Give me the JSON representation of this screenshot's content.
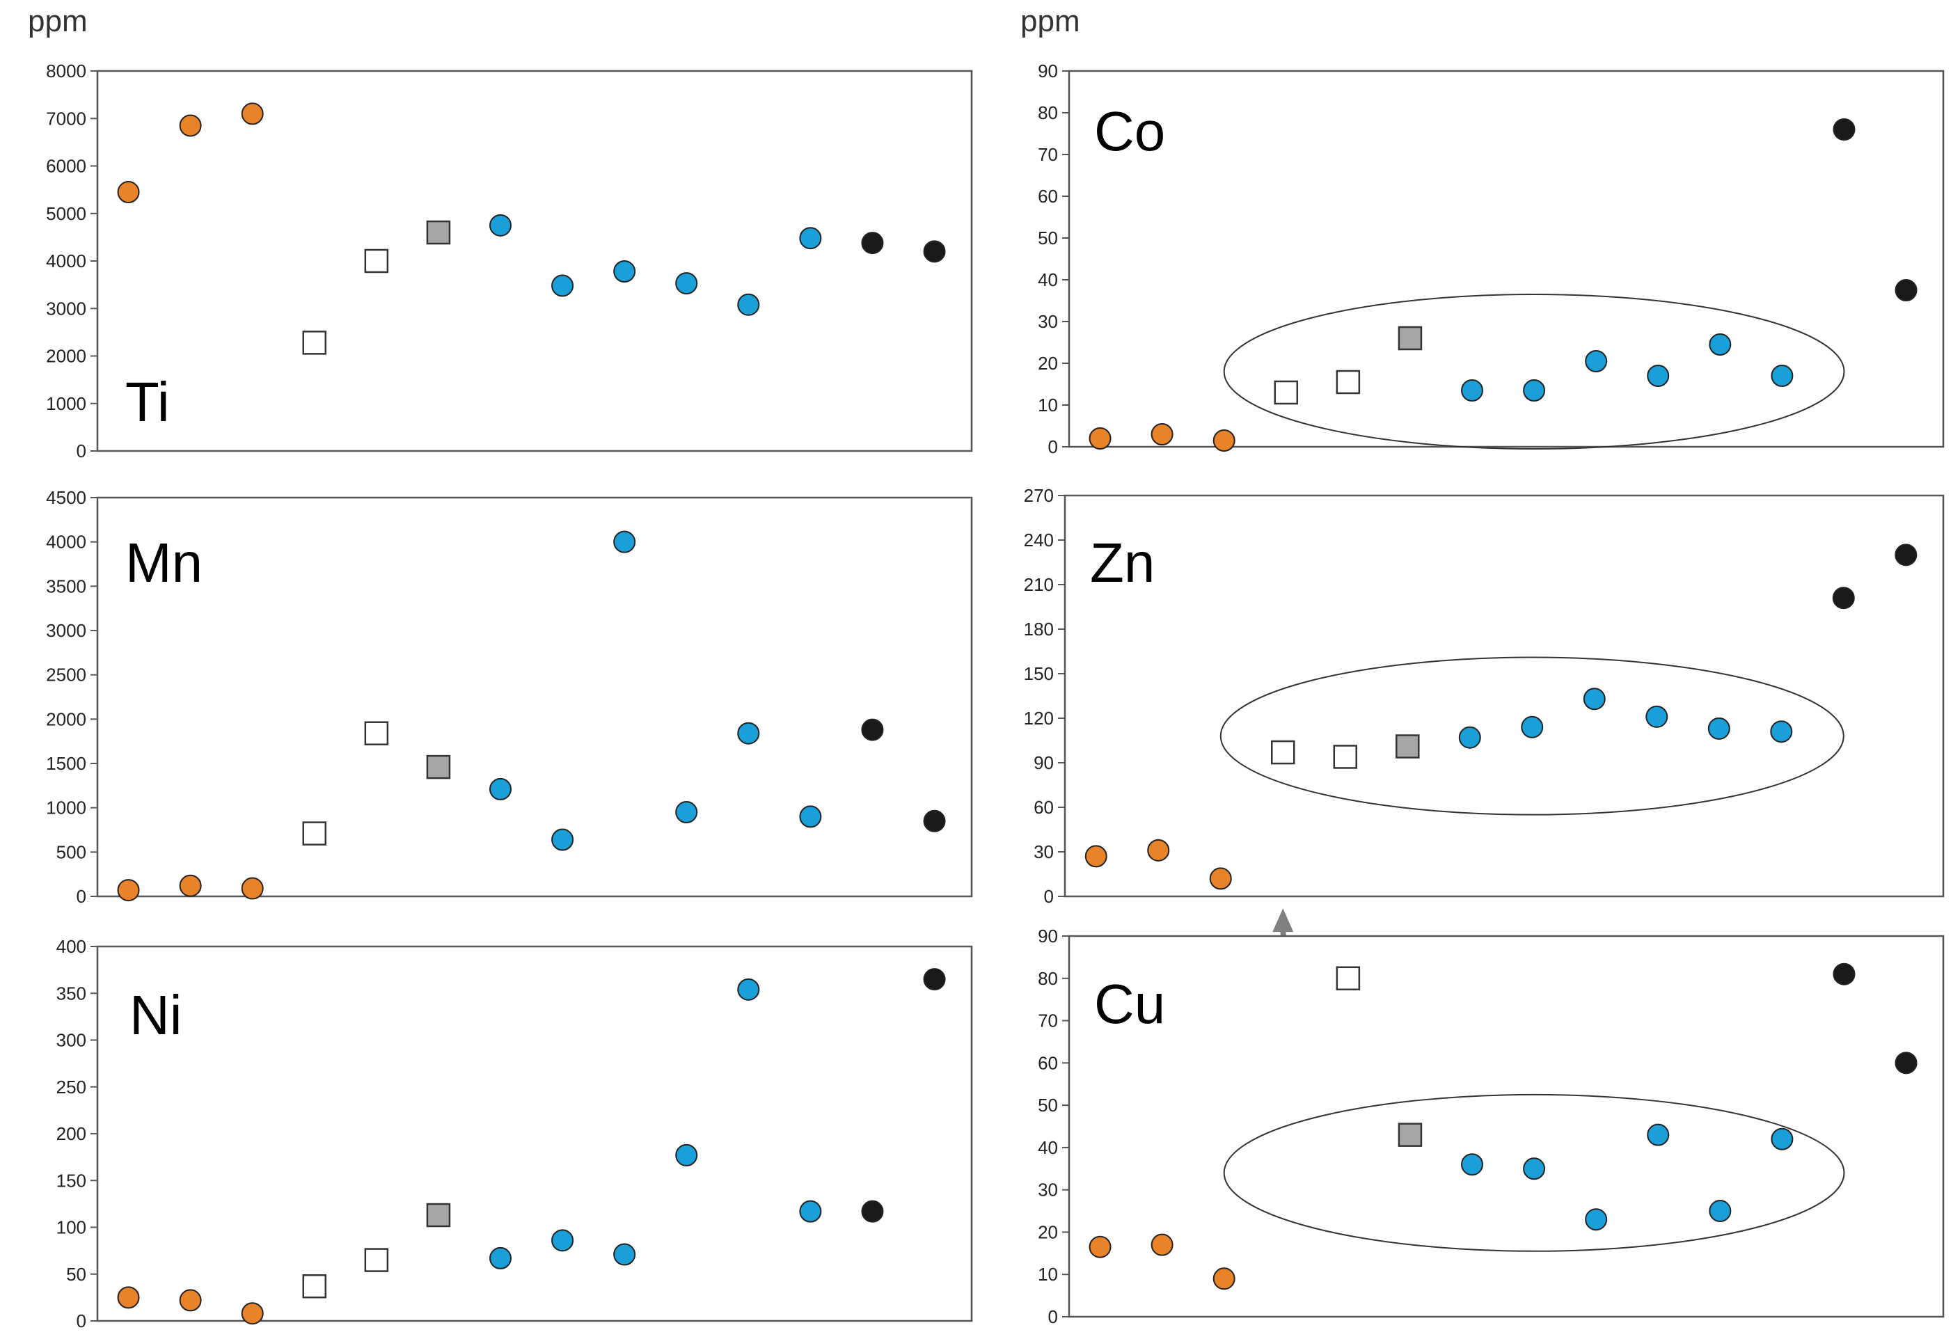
{
  "colors": {
    "orange": "#e8832a",
    "blue": "#1a9fd8",
    "black": "#1a1a1a",
    "grey": "#a6a6a6",
    "white": "#ffffff",
    "arrow": "#808080"
  },
  "chart_data": [
    {
      "type": "scatter",
      "element": "Ti",
      "unit_label": "ppm",
      "ylim": [
        0,
        8000
      ],
      "yticks": [
        0,
        1000,
        2000,
        3000,
        4000,
        5000,
        6000,
        7000,
        8000
      ],
      "x": [
        1,
        2,
        3,
        4,
        5,
        6,
        7,
        8,
        9,
        10,
        11,
        12,
        13,
        14
      ],
      "values": [
        5450,
        6850,
        7100,
        2280,
        4000,
        4600,
        4750,
        3480,
        3780,
        3530,
        3080,
        4480,
        4380,
        4200
      ],
      "markers": [
        "orange",
        "orange",
        "orange",
        "white_square",
        "white_square",
        "grey_square",
        "blue",
        "blue",
        "blue",
        "blue",
        "blue",
        "blue",
        "black",
        "black"
      ]
    },
    {
      "type": "scatter",
      "element": "Co",
      "unit_label": "ppm",
      "ylim": [
        0,
        90
      ],
      "yticks": [
        0,
        10,
        20,
        30,
        40,
        50,
        60,
        70,
        80,
        90
      ],
      "x": [
        1,
        2,
        3,
        4,
        5,
        6,
        7,
        8,
        9,
        10,
        11,
        12,
        13,
        14
      ],
      "values": [
        2,
        3,
        1.5,
        13,
        15.5,
        26,
        13.5,
        13.5,
        20.5,
        17,
        24.5,
        17,
        76,
        37.5
      ],
      "markers": [
        "orange",
        "orange",
        "orange",
        "white_square",
        "white_square",
        "grey_square",
        "blue",
        "blue",
        "blue",
        "blue",
        "blue",
        "blue",
        "black",
        "black"
      ],
      "ellipse": {
        "x_center": 8.0,
        "x_halfwidth": 5.0,
        "y_center": 18,
        "y_halfheight": 18.5
      }
    },
    {
      "type": "scatter",
      "element": "Mn",
      "unit_label": "",
      "ylim": [
        0,
        4500
      ],
      "yticks": [
        0,
        500,
        1000,
        1500,
        2000,
        2500,
        3000,
        3500,
        4000,
        4500
      ],
      "x": [
        1,
        2,
        3,
        4,
        5,
        6,
        7,
        8,
        9,
        10,
        11,
        12,
        13,
        14
      ],
      "values": [
        70,
        120,
        90,
        710,
        1840,
        1460,
        1210,
        640,
        4000,
        950,
        1840,
        900,
        1880,
        850
      ],
      "markers": [
        "orange",
        "orange",
        "orange",
        "white_square",
        "white_square",
        "grey_square",
        "blue",
        "blue",
        "blue",
        "blue",
        "blue",
        "blue",
        "black",
        "black"
      ]
    },
    {
      "type": "scatter",
      "element": "Zn",
      "unit_label": "",
      "ylim": [
        0,
        270
      ],
      "yticks": [
        0,
        30,
        60,
        90,
        120,
        150,
        180,
        210,
        240,
        270
      ],
      "x": [
        1,
        2,
        3,
        4,
        5,
        6,
        7,
        8,
        9,
        10,
        11,
        12,
        13,
        14
      ],
      "values": [
        27,
        31,
        12,
        97,
        94,
        101,
        107,
        114,
        133,
        121,
        113,
        111,
        201,
        230
      ],
      "markers": [
        "orange",
        "orange",
        "orange",
        "white_square",
        "white_square",
        "grey_square",
        "blue",
        "blue",
        "blue",
        "blue",
        "blue",
        "blue",
        "black",
        "black"
      ],
      "ellipse": {
        "x_center": 8.0,
        "x_halfwidth": 5.0,
        "y_center": 108,
        "y_halfheight": 53
      },
      "arrow": {
        "x": 4.0,
        "y_from": -45,
        "y_to": -8
      }
    },
    {
      "type": "scatter",
      "element": "Ni",
      "unit_label": "",
      "ylim": [
        0,
        400
      ],
      "yticks": [
        0,
        50,
        100,
        150,
        200,
        250,
        300,
        350,
        400
      ],
      "x": [
        1,
        2,
        3,
        4,
        5,
        6,
        7,
        8,
        9,
        10,
        11,
        12,
        13,
        14
      ],
      "values": [
        25,
        22,
        8,
        37,
        65,
        113,
        67,
        86,
        71,
        177,
        354,
        117,
        117,
        365
      ],
      "markers": [
        "orange",
        "orange",
        "orange",
        "white_square",
        "white_square",
        "grey_square",
        "blue",
        "blue",
        "blue",
        "blue",
        "blue",
        "blue",
        "black",
        "black"
      ]
    },
    {
      "type": "scatter",
      "element": "Cu",
      "unit_label": "",
      "ylim": [
        0,
        90
      ],
      "yticks": [
        0,
        10,
        20,
        30,
        40,
        50,
        60,
        70,
        80,
        90
      ],
      "x": [
        1,
        2,
        3,
        5,
        6,
        7,
        8,
        9,
        10,
        11,
        12,
        13,
        14
      ],
      "values": [
        16.5,
        17,
        9,
        80,
        43,
        36,
        35,
        23,
        43,
        25,
        42,
        81,
        60
      ],
      "markers": [
        "orange",
        "orange",
        "orange",
        "white_square",
        "grey_square",
        "blue",
        "blue",
        "blue",
        "blue",
        "blue",
        "blue",
        "black",
        "black"
      ],
      "ellipse": {
        "x_center": 8.0,
        "x_halfwidth": 5.0,
        "y_center": 34,
        "y_halfheight": 18.5
      }
    }
  ]
}
